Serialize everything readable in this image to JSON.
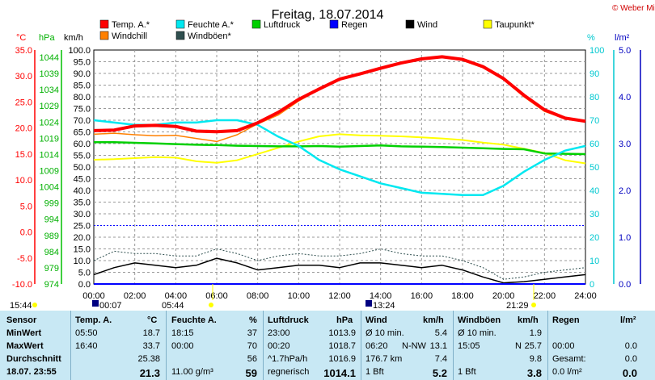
{
  "header": {
    "title": "Freitag, 18.07.2014",
    "credit": "© Weber Mike"
  },
  "legend": [
    {
      "label": "Temp. A.*",
      "color": "#ff0000"
    },
    {
      "label": "Feuchte A.*",
      "color": "#00e8f0"
    },
    {
      "label": "Luftdruck",
      "color": "#00d000"
    },
    {
      "label": "Regen",
      "color": "#0000ff"
    },
    {
      "label": "Wind",
      "color": "#000000"
    },
    {
      "label": "Taupunkt*",
      "color": "#ffff00"
    },
    {
      "label": "Windchill",
      "color": "#ff8000"
    },
    {
      "label": "Windböen*",
      "color": "#2f4f4f"
    }
  ],
  "axes": {
    "celsius_unit": "°C",
    "hpa_unit": "hPa",
    "kmh_unit": "km/h",
    "percent_unit": "%",
    "rain_unit": "l/m²",
    "celsius_ticks": [
      "35.0",
      "30.0",
      "25.0",
      "20.0",
      "15.0",
      "10.0",
      "5.0",
      "0.0",
      "-5.0",
      "-10.0"
    ],
    "hpa_ticks": [
      "1044",
      "1039",
      "1034",
      "1029",
      "1024",
      "1019",
      "1014",
      "1009",
      "1004",
      "999",
      "994",
      "989",
      "984",
      "979",
      "974"
    ],
    "kmh_ticks": [
      "100.0",
      "95.0",
      "90.0",
      "85.0",
      "80.0",
      "75.0",
      "70.0",
      "65.0",
      "60.0",
      "55.0",
      "50.0",
      "45.0",
      "40.0",
      "35.0",
      "30.0",
      "25.0",
      "20.0",
      "15.0",
      "10.0",
      "5.0",
      "0.0"
    ],
    "percent_ticks": [
      "100",
      "90",
      "80",
      "70",
      "60",
      "50",
      "40",
      "30",
      "20",
      "10",
      "0"
    ],
    "rain_ticks": [
      "5.0",
      "4.0",
      "3.0",
      "2.0",
      "1.0",
      "0.0"
    ],
    "time_ticks": [
      "00:00",
      "02:00",
      "04:00",
      "06:00",
      "08:00",
      "10:00",
      "12:00",
      "14:00",
      "16:00",
      "18:00",
      "20:00",
      "22:00",
      "24:00"
    ]
  },
  "sun_moon": {
    "moonset": "15:44",
    "moonset_right": "00:07",
    "sunrise": "05:44",
    "moon_marker": "13:24",
    "sunset": "21:29"
  },
  "chart_data": {
    "type": "line",
    "x_unit": "hours",
    "x_range": [
      0,
      24
    ],
    "y_range_kmh": [
      0,
      100
    ],
    "series": [
      {
        "name": "Temp. A.*",
        "axis": "celsius",
        "color": "#ff0000",
        "x": [
          0,
          1,
          2,
          3,
          4,
          5,
          6,
          7,
          8,
          9,
          10,
          11,
          12,
          13,
          14,
          15,
          16,
          17,
          18,
          19,
          20,
          21,
          22,
          23,
          24
        ],
        "y": [
          19.5,
          19.6,
          20.4,
          20.5,
          20.3,
          19.4,
          19.3,
          19.5,
          21.0,
          23.0,
          25.5,
          27.5,
          29.4,
          30.4,
          31.5,
          32.5,
          33.3,
          33.7,
          33.2,
          31.8,
          29.5,
          26.3,
          23.5,
          21.9,
          21.3
        ]
      },
      {
        "name": "Windchill",
        "axis": "celsius",
        "color": "#ff8000",
        "x": [
          0,
          1,
          2,
          3,
          4,
          5,
          6,
          7,
          8,
          9,
          10,
          11,
          12,
          13,
          14,
          15,
          16,
          17,
          18,
          19,
          20,
          21,
          22,
          23,
          24
        ],
        "y": [
          18.8,
          19.0,
          18.7,
          18.5,
          18.6,
          18.0,
          17.4,
          18.7,
          20.8,
          22.5,
          25.2,
          27.4,
          29.3,
          30.4,
          31.5,
          32.5,
          33.3,
          33.6,
          33.0,
          31.6,
          29.3,
          26.0,
          23.2,
          21.8,
          21.3
        ]
      },
      {
        "name": "Feuchte A.*",
        "axis": "percent",
        "color": "#00e8f0",
        "x": [
          0,
          1,
          2,
          3,
          4,
          5,
          6,
          7,
          8,
          9,
          10,
          11,
          12,
          13,
          14,
          15,
          16,
          17,
          18,
          19,
          20,
          21,
          22,
          23,
          24
        ],
        "y": [
          70,
          69,
          68,
          68,
          69,
          69,
          70,
          70,
          68,
          63,
          59,
          53,
          49,
          46,
          43,
          41,
          39,
          38.5,
          38,
          38,
          42,
          48,
          53,
          57,
          59
        ]
      },
      {
        "name": "Luftdruck",
        "axis": "hpa",
        "color": "#00d000",
        "x": [
          0,
          1,
          2,
          3,
          4,
          5,
          6,
          7,
          8,
          9,
          10,
          11,
          12,
          13,
          14,
          15,
          16,
          17,
          18,
          19,
          20,
          21,
          22,
          23,
          24
        ],
        "y": [
          1017.8,
          1017.8,
          1017.6,
          1017.4,
          1017.2,
          1017.0,
          1016.9,
          1016.7,
          1016.6,
          1016.5,
          1016.5,
          1016.6,
          1016.4,
          1016.6,
          1016.8,
          1016.5,
          1016.4,
          1016.3,
          1016.1,
          1015.9,
          1015.7,
          1015.6,
          1014.3,
          1014.2,
          1014.1
        ]
      },
      {
        "name": "Taupunkt*",
        "axis": "celsius",
        "color": "#ffff00",
        "x": [
          0,
          1,
          2,
          3,
          4,
          5,
          6,
          7,
          8,
          9,
          10,
          11,
          12,
          13,
          14,
          15,
          16,
          17,
          18,
          19,
          20,
          21,
          22,
          23,
          24
        ],
        "y": [
          13.9,
          14.0,
          14.2,
          14.4,
          14.3,
          13.6,
          13.3,
          13.8,
          15.0,
          16.2,
          17.4,
          18.4,
          18.8,
          18.6,
          18.5,
          18.4,
          18.2,
          18.0,
          17.7,
          17.2,
          16.8,
          16.0,
          15.2,
          13.8,
          13.2
        ]
      },
      {
        "name": "Wind",
        "axis": "kmh",
        "color": "#000000",
        "x": [
          0,
          1,
          2,
          3,
          4,
          5,
          6,
          7,
          8,
          9,
          10,
          11,
          12,
          13,
          14,
          15,
          16,
          17,
          18,
          19,
          20,
          21,
          22,
          23,
          24
        ],
        "y": [
          4,
          7,
          9,
          8,
          7,
          8,
          11,
          9,
          6,
          7,
          8,
          8,
          7,
          9,
          9,
          8,
          7,
          8,
          6,
          3,
          0.5,
          1,
          2,
          3,
          4
        ]
      },
      {
        "name": "Windböen*",
        "axis": "kmh",
        "color": "#2f4f4f",
        "x": [
          0,
          1,
          2,
          3,
          4,
          5,
          6,
          7,
          8,
          9,
          10,
          11,
          12,
          13,
          14,
          15,
          16,
          17,
          18,
          19,
          20,
          21,
          22,
          23,
          24
        ],
        "y": [
          10,
          14,
          13,
          13,
          12,
          12,
          15,
          13,
          10,
          12,
          13,
          12,
          12,
          13,
          15,
          13,
          12,
          12,
          10,
          7,
          2,
          3,
          5,
          6,
          7
        ]
      },
      {
        "name": "Regen",
        "axis": "rain",
        "color": "#0000ff",
        "x": [
          0,
          24
        ],
        "y": [
          0,
          0
        ]
      }
    ]
  },
  "table": {
    "headers": {
      "sensor": "Sensor",
      "temp": "Temp. A.",
      "temp_unit": "°C",
      "feuchte": "Feuchte A.",
      "feuchte_unit": "%",
      "druck": "Luftdruck",
      "druck_unit": "hPa",
      "wind": "Wind",
      "wind_unit": "km/h",
      "boen": "Windböen",
      "boen_unit": "km/h",
      "regen": "Regen",
      "regen_unit": "l/m²"
    },
    "rows": [
      {
        "label": "MinWert",
        "t_time": "05:50",
        "t_val": "18.7",
        "f_time": "18:15",
        "f_val": "37",
        "d_time": "23:00",
        "d_val": "1013.9",
        "w_time": "Ø 10 min.",
        "w_val": "5.4",
        "b_time": "Ø 10 min.",
        "b_val": "1.9",
        "r_time": "",
        "r_val": ""
      },
      {
        "label": "MaxWert",
        "t_time": "16:40",
        "t_val": "33.7",
        "f_time": "00:00",
        "f_val": "70",
        "d_time": "00:20",
        "d_val": "1018.7",
        "w_time": "06:20",
        "w_mid": "N-NW",
        "w_val": "13.1",
        "b_time": "15:05",
        "b_mid": "N",
        "b_val": "25.7",
        "r_time": "00:00",
        "r_val": "0.0"
      },
      {
        "label": "Durchschnitt",
        "t_time": "",
        "t_val": "25.38",
        "f_time": "",
        "f_val": "56",
        "d_time": "^1.7hPa/h",
        "d_val": "1016.9",
        "w_time": "176.7 km",
        "w_val": "7.4",
        "b_time": "",
        "b_val": "9.8",
        "r_time": "Gesamt:",
        "r_val": "0.0"
      },
      {
        "label": "18.07. 23:55",
        "t_time": "",
        "t_val": "21.3",
        "f_time": "11.00 g/m³",
        "f_val": "59",
        "d_time": "regnerisch",
        "d_val": "1014.1",
        "w_time": "1 Bft",
        "w_val": "5.2",
        "b_time": "1 Bft",
        "b_val": "3.8",
        "r_time": "0.0 l/m²",
        "r_val": "0.0"
      }
    ]
  }
}
